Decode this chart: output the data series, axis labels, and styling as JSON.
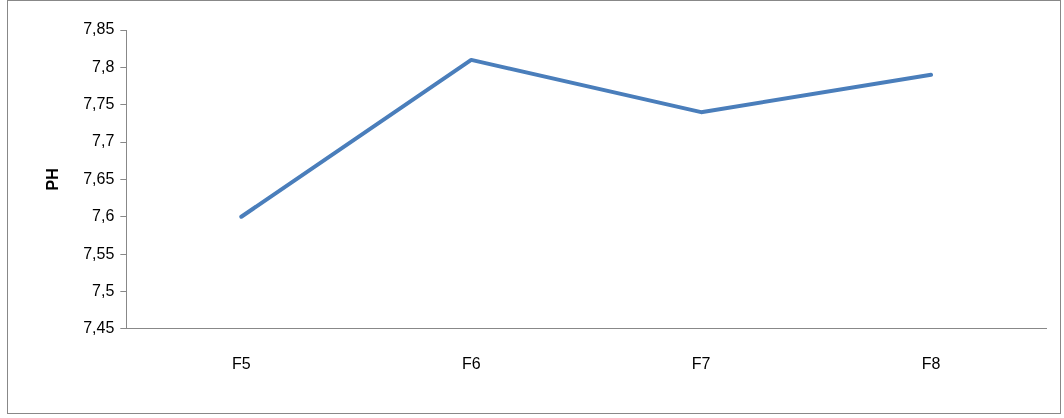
{
  "chart_data": {
    "type": "line",
    "ylabel": "PH",
    "categories": [
      "F5",
      "F6",
      "F7",
      "F8"
    ],
    "series": [
      {
        "color": "#4a7ebb",
        "values": [
          7.6,
          7.81,
          7.74,
          7.79
        ]
      }
    ],
    "ylim": [
      7.45,
      7.85
    ],
    "yticks": [
      {
        "value": 7.45,
        "label": "7,45"
      },
      {
        "value": 7.5,
        "label": "7,5"
      },
      {
        "value": 7.55,
        "label": "7,55"
      },
      {
        "value": 7.6,
        "label": "7,6"
      },
      {
        "value": 7.65,
        "label": "7,65"
      },
      {
        "value": 7.7,
        "label": "7,7"
      },
      {
        "value": 7.75,
        "label": "7,75"
      },
      {
        "value": 7.8,
        "label": "7,8"
      },
      {
        "value": 7.85,
        "label": "7,85"
      }
    ],
    "grid": false,
    "legend": false,
    "marker": "none",
    "line_style": "solid"
  }
}
